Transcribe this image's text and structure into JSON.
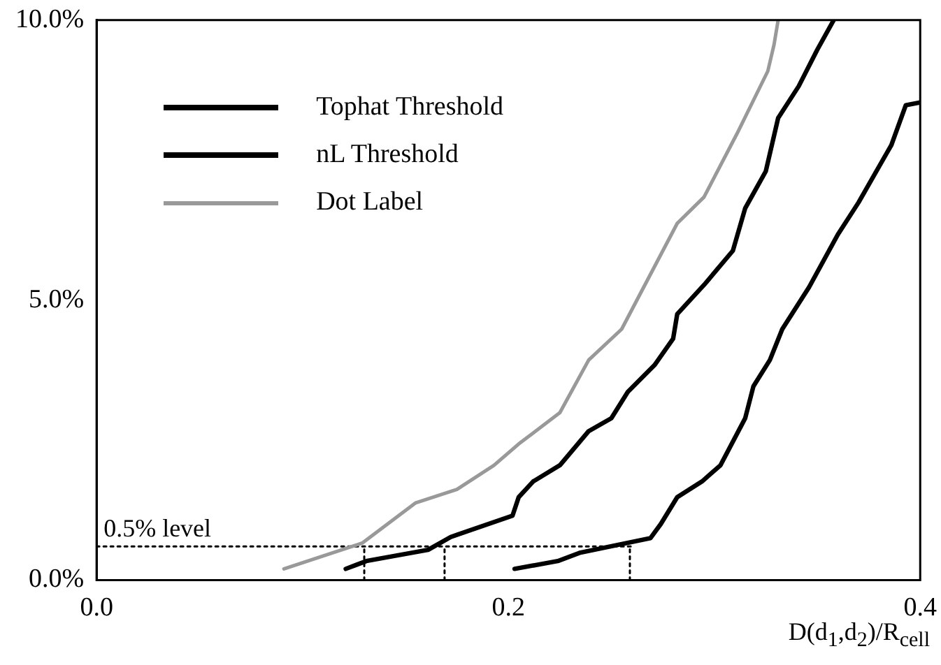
{
  "chart_data": {
    "type": "line",
    "xlabel": "D(d$_{1}$,d$_{2}$)/R$_{cell}$",
    "xlim": [
      0,
      0.4
    ],
    "xticks": [
      {
        "value": 0,
        "label": "0.0"
      },
      {
        "value": 0.2,
        "label": "0.2"
      },
      {
        "value": 0.4,
        "label": "0.4"
      }
    ],
    "ylim": [
      0,
      10
    ],
    "yticks": [
      {
        "value": 0,
        "label": "0.0%"
      },
      {
        "value": 5,
        "label": "5.0%"
      },
      {
        "value": 10,
        "label": "10.0%"
      }
    ],
    "grid": false,
    "legend": "top left",
    "marker": "none",
    "line_style": "solid",
    "annotations": [
      {
        "text": "0.5% level",
        "x": 0,
        "y": 0.6
      }
    ],
    "series": [
      {
        "name": "Tophat Threshold",
        "color": "#000000",
        "x": [
          0.203,
          0.224,
          0.235,
          0.269,
          0.274,
          0.282,
          0.294,
          0.303,
          0.315,
          0.319,
          0.327,
          0.333,
          0.346,
          0.36,
          0.37,
          0.386,
          0.393,
          0.4
        ],
        "values": [
          0.2,
          0.34,
          0.49,
          0.75,
          1.0,
          1.48,
          1.76,
          2.05,
          2.89,
          3.46,
          3.93,
          4.48,
          5.23,
          6.17,
          6.74,
          7.77,
          8.48,
          8.53
        ]
      },
      {
        "name": "nL Threshold",
        "color": "#000000",
        "x": [
          0.121,
          0.131,
          0.161,
          0.172,
          0.202,
          0.205,
          0.212,
          0.225,
          0.239,
          0.25,
          0.258,
          0.271,
          0.28,
          0.282,
          0.295,
          0.309,
          0.315,
          0.325,
          0.331,
          0.341,
          0.35,
          0.358
        ],
        "values": [
          0.2,
          0.34,
          0.54,
          0.77,
          1.15,
          1.48,
          1.76,
          2.05,
          2.66,
          2.89,
          3.36,
          3.84,
          4.31,
          4.75,
          5.27,
          5.88,
          6.64,
          7.3,
          8.25,
          8.82,
          9.47,
          10.0
        ]
      },
      {
        "name": "Dot Label",
        "color": "#999999",
        "x": [
          0.091,
          0.129,
          0.155,
          0.175,
          0.193,
          0.205,
          0.225,
          0.239,
          0.255,
          0.282,
          0.295,
          0.311,
          0.326,
          0.329,
          0.331
        ],
        "values": [
          0.2,
          0.66,
          1.38,
          1.62,
          2.05,
          2.43,
          2.99,
          3.93,
          4.48,
          6.37,
          6.84,
          7.97,
          9.09,
          9.56,
          10.0
        ]
      },
      {
        "color": "#000000",
        "line_style": "dotted",
        "x": [
          0,
          0.26
        ],
        "values": [
          0.6,
          0.6
        ]
      },
      {
        "color": "#000000",
        "line_style": "dotted",
        "x": [
          0.13,
          0.13
        ],
        "values": [
          0,
          0.6
        ]
      },
      {
        "color": "#000000",
        "line_style": "dotted",
        "x": [
          0.169,
          0.169
        ],
        "values": [
          0,
          0.6
        ]
      },
      {
        "color": "#000000",
        "line_style": "dotted",
        "x": [
          0.259,
          0.259
        ],
        "values": [
          0,
          0.6
        ]
      }
    ]
  }
}
